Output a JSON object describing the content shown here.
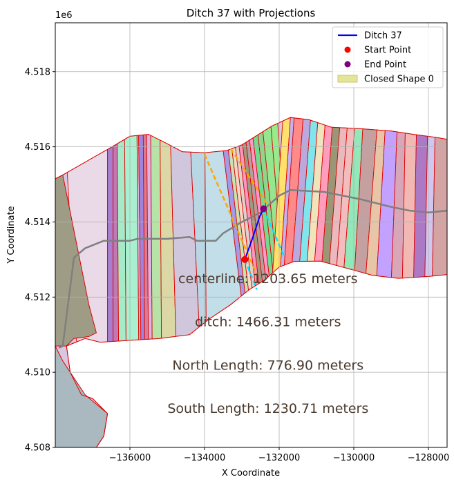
{
  "chart_data": {
    "type": "map-plot",
    "title": "Ditch 37 with Projections",
    "xlabel": "X Coordinate",
    "ylabel": "Y Coordinate",
    "y_offset_label": "1e6",
    "xlim": [
      -138000,
      -127500
    ],
    "ylim": [
      4508000,
      4519300
    ],
    "grid": true,
    "legend_position": "upper right",
    "x_ticks": [
      {
        "value": -136000,
        "label": "−136000"
      },
      {
        "value": -134000,
        "label": "−134000"
      },
      {
        "value": -132000,
        "label": "−132000"
      },
      {
        "value": -130000,
        "label": "−130000"
      },
      {
        "value": -128000,
        "label": "−128000"
      }
    ],
    "y_ticks": [
      {
        "value": 4508000,
        "label": "4.508"
      },
      {
        "value": 4510000,
        "label": "4.510"
      },
      {
        "value": 4512000,
        "label": "4.512"
      },
      {
        "value": 4514000,
        "label": "4.514"
      },
      {
        "value": 4516000,
        "label": "4.516"
      },
      {
        "value": 4518000,
        "label": "4.518"
      }
    ],
    "legend": [
      {
        "label": "Ditch 37",
        "kind": "line",
        "color": "#0000ff"
      },
      {
        "label": "Start Point",
        "kind": "marker",
        "color": "#ff0000"
      },
      {
        "label": "End Point",
        "kind": "marker",
        "color": "#800080"
      },
      {
        "label": "Closed Shape 0",
        "kind": "patch",
        "color": "#dede80"
      }
    ],
    "annotations": [
      {
        "text": "centerline: 1203.65 meters",
        "x": -132300,
        "y": 4512500
      },
      {
        "text": "ditch: 1466.31 meters",
        "x": -132300,
        "y": 4511350
      },
      {
        "text": "North Length: 776.90 meters",
        "x": -132300,
        "y": 4510200
      },
      {
        "text": "South Length: 1230.71 meters",
        "x": -132300,
        "y": 4509050
      }
    ],
    "ditch_line": {
      "name": "Ditch 37",
      "color": "#0000ff",
      "points": [
        [
          -132920,
          4513000
        ],
        [
          -132720,
          4513550
        ],
        [
          -132520,
          4514150
        ],
        [
          -132420,
          4514350
        ]
      ]
    },
    "start_point": {
      "x": -132920,
      "y": 4513000,
      "color": "#ff0000"
    },
    "end_point": {
      "x": -132420,
      "y": 4514350,
      "color": "#800080"
    },
    "projections": [
      {
        "color": "#ffa500",
        "points": [
          [
            -134000,
            4515800
          ],
          [
            -132600,
            4512600
          ]
        ]
      },
      {
        "color": "#ffa500",
        "points": [
          [
            -133300,
            4515950
          ],
          [
            -132300,
            4514450
          ]
        ]
      },
      {
        "color": "#00e5ff",
        "points": [
          [
            -132920,
            4513000
          ],
          [
            -132600,
            4512200
          ]
        ]
      },
      {
        "color": "#00e5ff",
        "points": [
          [
            -132420,
            4514350
          ],
          [
            -131850,
            4513050
          ]
        ]
      }
    ],
    "centerline": {
      "color": "#7f7f7f",
      "points": [
        [
          -137900,
          4510650
        ],
        [
          -137800,
          4510700
        ],
        [
          -137500,
          4513050
        ],
        [
          -137200,
          4513300
        ],
        [
          -136700,
          4513500
        ],
        [
          -136000,
          4513500
        ],
        [
          -135800,
          4513550
        ],
        [
          -135000,
          4513550
        ],
        [
          -134400,
          4513600
        ],
        [
          -134200,
          4513500
        ],
        [
          -133700,
          4513500
        ],
        [
          -133500,
          4513700
        ],
        [
          -133000,
          4514000
        ],
        [
          -132500,
          4514250
        ],
        [
          -132000,
          4514700
        ],
        [
          -131700,
          4514850
        ],
        [
          -130800,
          4514800
        ],
        [
          -129800,
          4514600
        ],
        [
          -129000,
          4514400
        ],
        [
          -128500,
          4514300
        ],
        [
          -128000,
          4514250
        ],
        [
          -127500,
          4514300
        ]
      ]
    },
    "outline": [
      [
        -138000,
        4515150
      ],
      [
        -137800,
        4515250
      ],
      [
        -136600,
        4515930
      ],
      [
        -136000,
        4516280
      ],
      [
        -135500,
        4516330
      ],
      [
        -135000,
        4516080
      ],
      [
        -134600,
        4515870
      ],
      [
        -134000,
        4515840
      ],
      [
        -133400,
        4515900
      ],
      [
        -133000,
        4516050
      ],
      [
        -132200,
        4516550
      ],
      [
        -131700,
        4516780
      ],
      [
        -131200,
        4516720
      ],
      [
        -130600,
        4516520
      ],
      [
        -129800,
        4516480
      ],
      [
        -129000,
        4516420
      ],
      [
        -128400,
        4516330
      ],
      [
        -127800,
        4516250
      ],
      [
        -127500,
        4516200
      ],
      [
        -127500,
        4512600
      ],
      [
        -128000,
        4512550
      ],
      [
        -128800,
        4512500
      ],
      [
        -129500,
        4512580
      ],
      [
        -130300,
        4512800
      ],
      [
        -130900,
        4512960
      ],
      [
        -131600,
        4512950
      ],
      [
        -132000,
        4512800
      ],
      [
        -132400,
        4512450
      ],
      [
        -132800,
        4512200
      ],
      [
        -133300,
        4511800
      ],
      [
        -133900,
        4511400
      ],
      [
        -134400,
        4511000
      ],
      [
        -135200,
        4510900
      ],
      [
        -136000,
        4510850
      ],
      [
        -136800,
        4510800
      ],
      [
        -137200,
        4510900
      ],
      [
        -137700,
        4510700
      ],
      [
        -137600,
        4510000
      ],
      [
        -137300,
        4509400
      ],
      [
        -137000,
        4509300
      ],
      [
        -136600,
        4508900
      ],
      [
        -136700,
        4508300
      ],
      [
        -136900,
        4508000
      ],
      [
        -138000,
        4508000
      ]
    ],
    "strips_west": {
      "boundaries_top": [
        -137800,
        -136600,
        -136450,
        -136350,
        -136150,
        -135820,
        -135780,
        -135650,
        -135560,
        -135450,
        -135200,
        -134950,
        -134450,
        -134000,
        -133700,
        -133550,
        -133450,
        -133350,
        -133250,
        -133150,
        -133050,
        -132950,
        -132850,
        -132700,
        -132550,
        -132300,
        -132100
      ],
      "boundaries_bottom": [
        -137400,
        -136600,
        -136450,
        -136300,
        -136100,
        -135760,
        -135700,
        -135600,
        -135500,
        -135400,
        -135150,
        -134750,
        -134100,
        -133950,
        -132800,
        -132700,
        -132600,
        -132500,
        -132400,
        -132300,
        -132200,
        -132100,
        -132000,
        -131900,
        -131800,
        -131700,
        -131600
      ],
      "colors": [
        "#ead9e6",
        "#a77fd0",
        "#c278b0",
        "#a6eac8",
        "#a9f0d0",
        "#d3bcdc",
        "#9f84dd",
        "#d67d93",
        "#d9b4e5",
        "#b7e3a9",
        "#dcd8a6",
        "#d1c7dc",
        "#b9d6e4",
        "#c2dee9",
        "#a59ae3",
        "#c7e2b3",
        "#f0d9c9",
        "#dbd4cc",
        "#f599c1",
        "#9d9b7f",
        "#b2a09e",
        "#ff99c8",
        "#6fdc8f",
        "#8dd68e",
        "#95e68f",
        "#97eb89"
      ]
    },
    "strips_east": {
      "boundaries_top": [
        -131850,
        -131650,
        -131550,
        -131300,
        -131100,
        -130900,
        -130700,
        -130500,
        -130300,
        -130100,
        -129900,
        -129700,
        -129300,
        -129100,
        -128800,
        -128600,
        -128300,
        -128000,
        -127800,
        -127500
      ],
      "boundaries_bottom": [
        -132200,
        -132000,
        -131900,
        -131700,
        -131500,
        -131300,
        -131100,
        -130900,
        -130700,
        -130500,
        -130300,
        -130000,
        -129700,
        -129400,
        -129000,
        -128700,
        -128400,
        -128100,
        -127900,
        -127500
      ],
      "colors": [
        "#ffe26b",
        "#c4b2ef",
        "#ff8a8a",
        "#bba8dc",
        "#7fe6ee",
        "#f1e4bd",
        "#ff9dbc",
        "#9a9777",
        "#e9b9bd",
        "#f3bdbe",
        "#93e8b9",
        "#c4a0a0",
        "#e7c5a6",
        "#c2a1ff",
        "#d7a6b9",
        "#f2b9b4",
        "#ac79c5",
        "#d0c7f0",
        "#d3a4a3"
      ]
    },
    "lower_patch": {
      "color": "#aab8c0",
      "points": [
        [
          -138000,
          4510700
        ],
        [
          -137800,
          4510300
        ],
        [
          -137600,
          4510000
        ],
        [
          -137200,
          4509400
        ],
        [
          -136600,
          4508900
        ],
        [
          -136700,
          4508300
        ],
        [
          -136900,
          4508000
        ],
        [
          -138000,
          4508000
        ]
      ]
    },
    "left_patch": {
      "color": "#9f9c86",
      "points": [
        [
          -138000,
          4515150
        ],
        [
          -137800,
          4515250
        ],
        [
          -137100,
          4511800
        ],
        [
          -136900,
          4511050
        ],
        [
          -137100,
          4510950
        ],
        [
          -137500,
          4510900
        ],
        [
          -137700,
          4510700
        ],
        [
          -138000,
          4510700
        ]
      ]
    }
  }
}
